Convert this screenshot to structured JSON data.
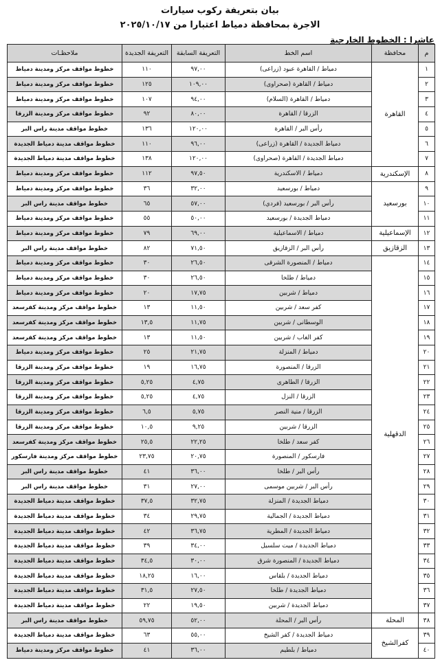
{
  "title": "بيان بتعريفة ركوب سيارات",
  "subtitle": "الاجرة بمحافظة دمياط اعتبارا من ٢٠٢٥/١٠/١٧",
  "section": "عاشرا : الخطوط الخارجية",
  "headers": {
    "num": "م",
    "gov": "محافظة",
    "line": "اسم الخط",
    "old": "التعريفة السابقة",
    "new": "التعريفة الجديدة",
    "notes": "ملاحظـات"
  },
  "governorates": [
    {
      "name": "القاهرة",
      "rows": 7
    },
    {
      "name": "الإسكندرية",
      "rows": 1
    },
    {
      "name": "بورسعيد",
      "rows": 3
    },
    {
      "name": "الإسماعيلية",
      "rows": 1
    },
    {
      "name": "الزقازيق",
      "rows": 1
    },
    {
      "name": "الدقهلية",
      "rows": 24
    },
    {
      "name": "المحلة",
      "rows": 1
    },
    {
      "name": "كفرالشيخ",
      "rows": 2
    }
  ],
  "rows": [
    {
      "num": "١",
      "line": "دمياط / القاهرة عبود (زراعى)",
      "old": "٩٧,٠٠",
      "new": "١١٠",
      "notes": "خطوط مواقف مركز ومدينة دمياط"
    },
    {
      "num": "٢",
      "line": "دمياط / القاهرة (صحراوى)",
      "old": "١٠٩,٠٠",
      "new": "١٢٥",
      "notes": "خطوط مواقف مركز ومدينة دمياط"
    },
    {
      "num": "٣",
      "line": "دمياط / القاهرة (السلام)",
      "old": "٩٤,٠٠",
      "new": "١٠٧",
      "notes": "خطوط مواقف مركز ومدينة دمياط"
    },
    {
      "num": "٤",
      "line": "الزرقا / القاهرة",
      "old": "٨٠,٠٠",
      "new": "٩٢",
      "notes": "خطوط مواقف مركز ومدينة الزرقا"
    },
    {
      "num": "٥",
      "line": "رأس البر / القاهرة",
      "old": "١٢٠,٠٠",
      "new": "١٣٦",
      "notes": "خطوط مواقف مدينة راس البر"
    },
    {
      "num": "٦",
      "line": "دمياط الجديدة / القاهرة (زراعى)",
      "old": "٩٦,٠٠",
      "new": "١١٠",
      "notes": "خطوط مواقف مدينة دمياط الجديدة"
    },
    {
      "num": "٧",
      "line": "دمياط الجديدة / القاهرة (صحراوى)",
      "old": "١٢٠,٠٠",
      "new": "١٣٨",
      "notes": "خطوط مواقف مدينة دمياط الجديدة"
    },
    {
      "num": "٨",
      "line": "دمياط / الاسكندرية",
      "old": "٩٧,٥٠",
      "new": "١١٢",
      "notes": "خطوط مواقف مركز ومدينة دمياط"
    },
    {
      "num": "٩",
      "line": "دمياط / بورسعيد",
      "old": "٣٢,٠٠",
      "new": "٣٦",
      "notes": "خطوط مواقف مركز ومدينة دمياط"
    },
    {
      "num": "١٠",
      "line": "رأس البر / بورسعيد (فردي)",
      "old": "٥٧,٠٠",
      "new": "٦٥",
      "notes": "خطوط مواقف مدينة راس البر"
    },
    {
      "num": "١١",
      "line": "دمياط الجديدة / بورسعيد",
      "old": "٥٠,٠٠",
      "new": "٥٥",
      "notes": "خطوط مواقف مركز ومدينة دمياط"
    },
    {
      "num": "١٢",
      "line": "دمياط / الاسماعيلية",
      "old": "٦٩,٠٠",
      "new": "٧٩",
      "notes": "خطوط مواقف مركز ومدينة دمياط"
    },
    {
      "num": "١٣",
      "line": "رأس البر / الزقازيق",
      "old": "٧١,٥٠",
      "new": "٨٢",
      "notes": "خطوط مواقف مدينة راس البر"
    },
    {
      "num": "١٤",
      "line": "دمياط / المنصورة الشرقى",
      "old": "٢٦,٥٠",
      "new": "٣٠",
      "notes": "خطوط مواقف مركز ومدينة دمياط"
    },
    {
      "num": "١٥",
      "line": "دمياط / طلخا",
      "old": "٢٦,٥٠",
      "new": "٣٠",
      "notes": "خطوط مواقف مركز ومدينة دمياط"
    },
    {
      "num": "١٦",
      "line": "دمياط / شربين",
      "old": "١٧,٧٥",
      "new": "٢٠",
      "notes": "خطوط مواقف مركز ومدينة دمياط"
    },
    {
      "num": "١٧",
      "line": "كفر سعد / شربين",
      "old": "١١,٥٠",
      "new": "١٣",
      "notes": "خطوط مواقف مركز ومدينة كفرسعد"
    },
    {
      "num": "١٨",
      "line": "الوسطانى / شربين",
      "old": "١١,٧٥",
      "new": "١٣,٥",
      "notes": "خطوط مواقف مركز ومدينة كفرسعد"
    },
    {
      "num": "١٩",
      "line": "كفر الغاب / شربين",
      "old": "١١,٥٠",
      "new": "١٣",
      "notes": "خطوط مواقف مركز ومدينة كفرسعد"
    },
    {
      "num": "٢٠",
      "line": "دمياط / المنزلة",
      "old": "٢١,٧٥",
      "new": "٢٥",
      "notes": "خطوط مواقف مركز ومدينة دمياط"
    },
    {
      "num": "٢١",
      "line": "الزرقا / المنصورة",
      "old": "١٦,٧٥",
      "new": "١٩",
      "notes": "خطوط مواقف مركز ومدينة الزرقا"
    },
    {
      "num": "٢٢",
      "line": "الزرقا / الطاهرى",
      "old": "٤,٧٥",
      "new": "٥,٢٥",
      "notes": "خطوط مواقف مركز ومدينة الزرقا"
    },
    {
      "num": "٢٣",
      "line": "الزرقا / النزل",
      "old": "٤,٧٥",
      "new": "٥,٢٥",
      "notes": "خطوط مواقف مركز ومدينة الزرقا"
    },
    {
      "num": "٢٤",
      "line": "الزرقا / منية النصر",
      "old": "٥,٧٥",
      "new": "٦,٥",
      "notes": "خطوط مواقف مركز ومدينة الزرقا"
    },
    {
      "num": "٢٥",
      "line": "الزرقا / شربين",
      "old": "٩,٢٥",
      "new": "١٠,٥",
      "notes": "خطوط مواقف مركز ومدينة الزرقا"
    },
    {
      "num": "٢٦",
      "line": "كفر سعد / طلخا",
      "old": "٢٢,٢٥",
      "new": "٢٥,٥",
      "notes": "خطوط مواقف مركز ومدينة كفرسعد"
    },
    {
      "num": "٢٧",
      "line": "فارسكور / المنصورة",
      "old": "٢٠,٧٥",
      "new": "٢٣,٧٥",
      "notes": "خطوط مواقف مركز ومدينة فارسكور"
    },
    {
      "num": "٢٨",
      "line": "رأس البر / طلخا",
      "old": "٣٦,٠٠",
      "new": "٤١",
      "notes": "خطوط مواقف مدينة راس البر"
    },
    {
      "num": "٢٩",
      "line": "رأس البر / شربين موسمى",
      "old": "٢٧,٠٠",
      "new": "٣١",
      "notes": "خطوط مواقف مدينة راس البر"
    },
    {
      "num": "٣٠",
      "line": "دمياط الجديدة / المنزلة",
      "old": "٣٢,٧٥",
      "new": "٣٧,٥",
      "notes": "خطوط مواقف مدينة دمياط الجديدة"
    },
    {
      "num": "٣١",
      "line": "دمياط الجديدة / الجمالية",
      "old": "٢٩,٧٥",
      "new": "٣٤",
      "notes": "خطوط مواقف مدينة دمياط الجديدة"
    },
    {
      "num": "٣٢",
      "line": "دمياط الجديدة / المطرية",
      "old": "٣٦,٧٥",
      "new": "٤٢",
      "notes": "خطوط مواقف مدينة دمياط الجديدة"
    },
    {
      "num": "٣٣",
      "line": "دمياط الجديدة / ميت سلسيل",
      "old": "٣٤,٠٠",
      "new": "٣٩",
      "notes": "خطوط مواقف مدينة دمياط الجديدة"
    },
    {
      "num": "٣٤",
      "line": "دمياط الجديدة / المنصورة شرق",
      "old": "٣٠,٠٠",
      "new": "٣٤,٥",
      "notes": "خطوط مواقف مدينة دمياط الجديدة"
    },
    {
      "num": "٣٥",
      "line": "دمياط الجديدة / بلقاس",
      "old": "١٦,٠٠",
      "new": "١٨,٢٥",
      "notes": "خطوط مواقف مدينة دمياط الجديدة"
    },
    {
      "num": "٣٦",
      "line": "دمياط الجديدة / طلخا",
      "old": "٢٧,٥٠",
      "new": "٣١,٥",
      "notes": "خطوط مواقف مدينة دمياط الجديدة"
    },
    {
      "num": "٣٧",
      "line": "دمياط الجديدة / شربين",
      "old": "١٩,٥٠",
      "new": "٢٢",
      "notes": "خطوط مواقف مدينة دمياط الجديدة"
    },
    {
      "num": "٣٨",
      "line": "رأس البر / المحلة",
      "old": "٥٢,٠٠",
      "new": "٥٩,٧٥",
      "notes": "خطوط مواقف مدينة راس البر"
    },
    {
      "num": "٣٩",
      "line": "دمياط الجديدة / كفر الشيخ",
      "old": "٥٥,٠٠",
      "new": "٦٣",
      "notes": "خطوط مواقف مدينة دمياط الجديدة"
    },
    {
      "num": "٤٠",
      "line": "دمياط / بلطيم",
      "old": "٣٦,٠٠",
      "new": "٤١",
      "notes": "خطوط مواقف مركز ومدينة دمياط"
    }
  ]
}
